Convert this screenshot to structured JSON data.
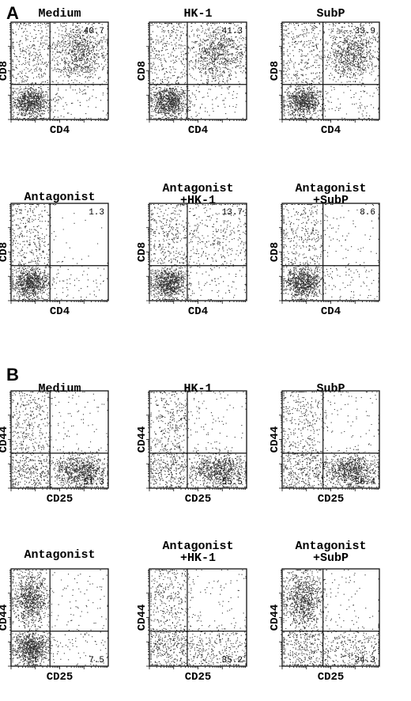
{
  "figure": {
    "sections": [
      {
        "letter": "A",
        "xlabel": "CD4",
        "ylabel": "CD8",
        "percent_quadrant": "upper-right",
        "plots": [
          {
            "title_lines": [
              "Medium"
            ],
            "percent": "40.7"
          },
          {
            "title_lines": [
              "HK-1"
            ],
            "percent": "41.3"
          },
          {
            "title_lines": [
              "SubP"
            ],
            "percent": "33.9"
          },
          {
            "title_lines": [
              "Antagonist"
            ],
            "percent": "1.3"
          },
          {
            "title_lines": [
              "Antagonist",
              "+HK-1"
            ],
            "percent": "13.7"
          },
          {
            "title_lines": [
              "Antagonist",
              "+SubP"
            ],
            "percent": "8.6"
          }
        ]
      },
      {
        "letter": "B",
        "xlabel": "CD25",
        "ylabel": "CD44",
        "percent_quadrant": "lower-right",
        "plots": [
          {
            "title_lines": [
              "Medium"
            ],
            "percent": "51.3"
          },
          {
            "title_lines": [
              "HK-1"
            ],
            "percent": "55.5"
          },
          {
            "title_lines": [
              "SubP"
            ],
            "percent": "56.4"
          },
          {
            "title_lines": [
              "Antagonist"
            ],
            "percent": "7.5"
          },
          {
            "title_lines": [
              "Antagonist",
              "+HK-1"
            ],
            "percent": "35.2"
          },
          {
            "title_lines": [
              "Antagonist",
              "+SubP"
            ],
            "percent": "24.3"
          }
        ]
      }
    ]
  },
  "chart_data": [
    {
      "type": "scatter",
      "panel": "A",
      "title": "Medium",
      "xlabel": "CD4",
      "ylabel": "CD8",
      "quadrant_percent": {
        "quadrant": "upper-right",
        "value": 40.7
      },
      "populations": [
        {
          "quadrant": "upper-right",
          "density": "high"
        },
        {
          "quadrant": "lower-left",
          "density": "high"
        },
        {
          "quadrant": "upper-left",
          "density": "medium"
        },
        {
          "quadrant": "lower-right",
          "density": "low"
        }
      ]
    },
    {
      "type": "scatter",
      "panel": "A",
      "title": "HK-1",
      "xlabel": "CD4",
      "ylabel": "CD8",
      "quadrant_percent": {
        "quadrant": "upper-right",
        "value": 41.3
      },
      "populations": [
        {
          "quadrant": "upper-right",
          "density": "high"
        },
        {
          "quadrant": "lower-left",
          "density": "high"
        },
        {
          "quadrant": "upper-left",
          "density": "medium"
        },
        {
          "quadrant": "lower-right",
          "density": "low"
        }
      ]
    },
    {
      "type": "scatter",
      "panel": "A",
      "title": "SubP",
      "xlabel": "CD4",
      "ylabel": "CD8",
      "quadrant_percent": {
        "quadrant": "upper-right",
        "value": 33.9
      },
      "populations": [
        {
          "quadrant": "upper-right",
          "density": "high"
        },
        {
          "quadrant": "lower-left",
          "density": "high"
        },
        {
          "quadrant": "upper-left",
          "density": "medium"
        },
        {
          "quadrant": "lower-right",
          "density": "low"
        }
      ]
    },
    {
      "type": "scatter",
      "panel": "A",
      "title": "Antagonist",
      "xlabel": "CD4",
      "ylabel": "CD8",
      "quadrant_percent": {
        "quadrant": "upper-right",
        "value": 1.3
      },
      "populations": [
        {
          "quadrant": "lower-left",
          "density": "high"
        },
        {
          "quadrant": "upper-left",
          "density": "medium"
        },
        {
          "quadrant": "upper-right",
          "density": "very low"
        },
        {
          "quadrant": "lower-right",
          "density": "low"
        }
      ]
    },
    {
      "type": "scatter",
      "panel": "A",
      "title": "Antagonist +HK-1",
      "xlabel": "CD4",
      "ylabel": "CD8",
      "quadrant_percent": {
        "quadrant": "upper-right",
        "value": 13.7
      },
      "populations": [
        {
          "quadrant": "lower-left",
          "density": "high"
        },
        {
          "quadrant": "upper-left",
          "density": "medium"
        },
        {
          "quadrant": "upper-right",
          "density": "medium"
        },
        {
          "quadrant": "lower-right",
          "density": "low"
        }
      ]
    },
    {
      "type": "scatter",
      "panel": "A",
      "title": "Antagonist +SubP",
      "xlabel": "CD4",
      "ylabel": "CD8",
      "quadrant_percent": {
        "quadrant": "upper-right",
        "value": 8.6
      },
      "populations": [
        {
          "quadrant": "lower-left",
          "density": "high"
        },
        {
          "quadrant": "upper-left",
          "density": "medium"
        },
        {
          "quadrant": "upper-right",
          "density": "low"
        },
        {
          "quadrant": "lower-right",
          "density": "low"
        }
      ]
    },
    {
      "type": "scatter",
      "panel": "B",
      "title": "Medium",
      "xlabel": "CD25",
      "ylabel": "CD44",
      "quadrant_percent": {
        "quadrant": "lower-right",
        "value": 51.3
      },
      "populations": [
        {
          "quadrant": "lower-right",
          "density": "high"
        },
        {
          "quadrant": "upper-left",
          "density": "medium"
        },
        {
          "quadrant": "lower-left",
          "density": "medium"
        },
        {
          "quadrant": "upper-right",
          "density": "low"
        }
      ]
    },
    {
      "type": "scatter",
      "panel": "B",
      "title": "HK-1",
      "xlabel": "CD25",
      "ylabel": "CD44",
      "quadrant_percent": {
        "quadrant": "lower-right",
        "value": 55.5
      },
      "populations": [
        {
          "quadrant": "lower-right",
          "density": "high"
        },
        {
          "quadrant": "upper-left",
          "density": "medium"
        },
        {
          "quadrant": "lower-left",
          "density": "medium"
        },
        {
          "quadrant": "upper-right",
          "density": "low"
        }
      ]
    },
    {
      "type": "scatter",
      "panel": "B",
      "title": "SubP",
      "xlabel": "CD25",
      "ylabel": "CD44",
      "quadrant_percent": {
        "quadrant": "lower-right",
        "value": 56.4
      },
      "populations": [
        {
          "quadrant": "lower-right",
          "density": "high"
        },
        {
          "quadrant": "upper-left",
          "density": "medium"
        },
        {
          "quadrant": "lower-left",
          "density": "medium"
        },
        {
          "quadrant": "upper-right",
          "density": "low"
        }
      ]
    },
    {
      "type": "scatter",
      "panel": "B",
      "title": "Antagonist",
      "xlabel": "CD25",
      "ylabel": "CD44",
      "quadrant_percent": {
        "quadrant": "lower-right",
        "value": 7.5
      },
      "populations": [
        {
          "quadrant": "upper-left",
          "density": "high"
        },
        {
          "quadrant": "lower-left",
          "density": "high"
        },
        {
          "quadrant": "lower-right",
          "density": "low"
        },
        {
          "quadrant": "upper-right",
          "density": "low"
        }
      ]
    },
    {
      "type": "scatter",
      "panel": "B",
      "title": "Antagonist +HK-1",
      "xlabel": "CD25",
      "ylabel": "CD44",
      "quadrant_percent": {
        "quadrant": "lower-right",
        "value": 35.2
      },
      "populations": [
        {
          "quadrant": "upper-left",
          "density": "medium"
        },
        {
          "quadrant": "lower-left",
          "density": "medium"
        },
        {
          "quadrant": "lower-right",
          "density": "medium"
        },
        {
          "quadrant": "upper-right",
          "density": "low"
        }
      ]
    },
    {
      "type": "scatter",
      "panel": "B",
      "title": "Antagonist +SubP",
      "xlabel": "CD25",
      "ylabel": "CD44",
      "quadrant_percent": {
        "quadrant": "lower-right",
        "value": 24.3
      },
      "populations": [
        {
          "quadrant": "upper-left",
          "density": "high"
        },
        {
          "quadrant": "lower-left",
          "density": "medium"
        },
        {
          "quadrant": "lower-right",
          "density": "medium"
        },
        {
          "quadrant": "upper-right",
          "density": "low"
        }
      ]
    }
  ]
}
